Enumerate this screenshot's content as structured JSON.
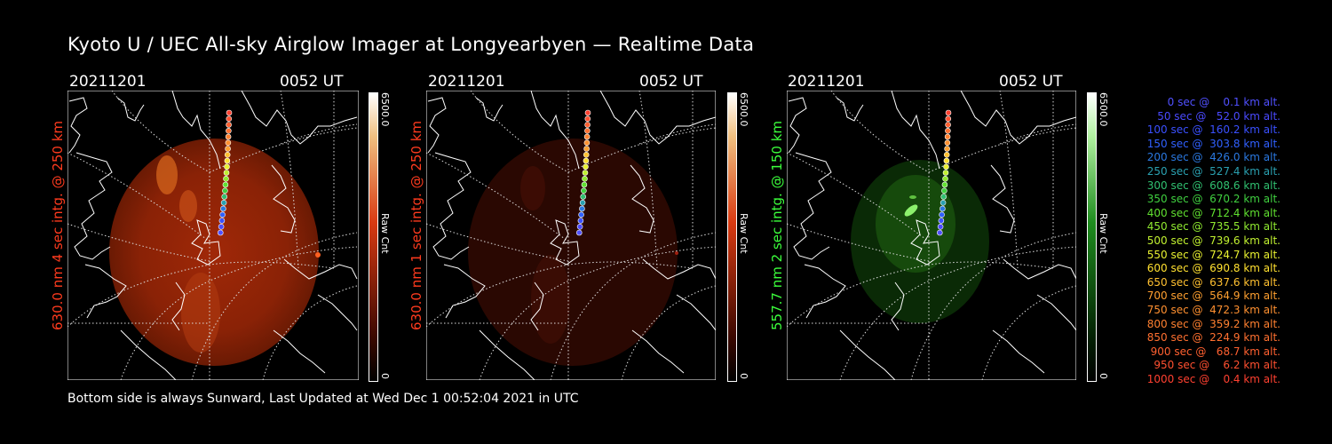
{
  "title": "Kyoto U / UEC All-sky Airglow Imager at Longyearbyen — Realtime Data",
  "panels": [
    {
      "date": "20211201",
      "time": "0052 UT",
      "side_label": "630.0 nm 4 sec intg. @ 250 km",
      "side_color": "#ff3b1e",
      "cb_max": "6500.0",
      "cb_min": "0",
      "cb_unit": "Raw Cnt",
      "cb_color": "#d83a12"
    },
    {
      "date": "20211201",
      "time": "0052 UT",
      "side_label": "630.0 nm 1 sec intg. @ 250 km",
      "side_color": "#ff3b1e",
      "cb_max": "6500.0",
      "cb_min": "0",
      "cb_unit": "Raw Cnt",
      "cb_color": "#d83a12"
    },
    {
      "date": "20211201",
      "time": "0052 UT",
      "side_label": "557.7 nm 2 sec intg. @ 150 km",
      "side_color": "#3cff3c",
      "cb_max": "6500.0",
      "cb_min": "0",
      "cb_unit": "Raw Cnt",
      "cb_color": "#1e8c1e"
    }
  ],
  "footer": "Bottom side is always Sunward, Last Updated at Wed Dec  1 00:52:04 2021 in UTC",
  "legend": [
    {
      "text": "   0 sec @    0.1 km alt.",
      "color": "#5050ff"
    },
    {
      "text": "  50 sec @   52.0 km alt.",
      "color": "#4a4aff"
    },
    {
      "text": " 100 sec @  160.2 km alt.",
      "color": "#3a50ff"
    },
    {
      "text": " 150 sec @  303.8 km alt.",
      "color": "#3060ff"
    },
    {
      "text": " 200 sec @  426.0 km alt.",
      "color": "#2a78e0"
    },
    {
      "text": " 250 sec @  527.4 km alt.",
      "color": "#2aa0b0"
    },
    {
      "text": " 300 sec @  608.6 km alt.",
      "color": "#30c070"
    },
    {
      "text": " 350 sec @  670.2 km alt.",
      "color": "#40d040"
    },
    {
      "text": " 400 sec @  712.4 km alt.",
      "color": "#60e030"
    },
    {
      "text": " 450 sec @  735.5 km alt.",
      "color": "#90ea30"
    },
    {
      "text": " 500 sec @  739.6 km alt.",
      "color": "#c0f030"
    },
    {
      "text": " 550 sec @  724.7 km alt.",
      "color": "#e8f030"
    },
    {
      "text": " 600 sec @  690.8 km alt.",
      "color": "#ffe030"
    },
    {
      "text": " 650 sec @  637.6 km alt.",
      "color": "#ffc030"
    },
    {
      "text": " 700 sec @  564.9 km alt.",
      "color": "#ffa030"
    },
    {
      "text": " 750 sec @  472.3 km alt.",
      "color": "#ff9030"
    },
    {
      "text": " 800 sec @  359.2 km alt.",
      "color": "#ff8030"
    },
    {
      "text": " 850 sec @  224.9 km alt.",
      "color": "#ff7030"
    },
    {
      "text": " 900 sec @   68.7 km alt.",
      "color": "#ff6030"
    },
    {
      "text": " 950 sec @    6.2 km alt.",
      "color": "#ff5030"
    },
    {
      "text": "1000 sec @    0.4 km alt.",
      "color": "#ff4030"
    }
  ]
}
